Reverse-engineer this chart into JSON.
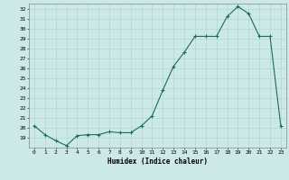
{
  "x": [
    0,
    1,
    2,
    3,
    4,
    5,
    6,
    7,
    8,
    9,
    10,
    11,
    12,
    13,
    14,
    15,
    16,
    17,
    18,
    19,
    20,
    21,
    22,
    23
  ],
  "y": [
    20.2,
    19.3,
    18.7,
    18.2,
    19.2,
    19.3,
    19.3,
    19.6,
    19.5,
    19.5,
    20.2,
    21.2,
    23.8,
    26.2,
    27.6,
    29.2,
    29.2,
    29.2,
    31.2,
    32.2,
    31.5,
    29.2,
    29.2,
    20.2
  ],
  "xlabel": "Humidex (Indice chaleur)",
  "bg_color": "#cce9e7",
  "line_color": "#1a6b5e",
  "grid_color": "#aad4cf",
  "ylim": [
    18,
    32.5
  ],
  "xlim": [
    -0.5,
    23.5
  ],
  "yticks": [
    19,
    20,
    21,
    22,
    23,
    24,
    25,
    26,
    27,
    28,
    29,
    30,
    31,
    32
  ],
  "ytick_labels": [
    "19",
    "20",
    "21",
    "22",
    "23",
    "24",
    "25",
    "26",
    "27",
    "28",
    "29",
    "30",
    "31",
    "32"
  ],
  "xticks": [
    0,
    1,
    2,
    3,
    4,
    5,
    6,
    7,
    8,
    9,
    10,
    11,
    12,
    13,
    14,
    15,
    16,
    17,
    18,
    19,
    20,
    21,
    22,
    23
  ],
  "xtick_labels": [
    "0",
    "1",
    "2",
    "3",
    "4",
    "5",
    "6",
    "7",
    "8",
    "9",
    "10",
    "11",
    "12",
    "13",
    "14",
    "15",
    "16",
    "17",
    "18",
    "19",
    "20",
    "21",
    "22",
    "23"
  ]
}
